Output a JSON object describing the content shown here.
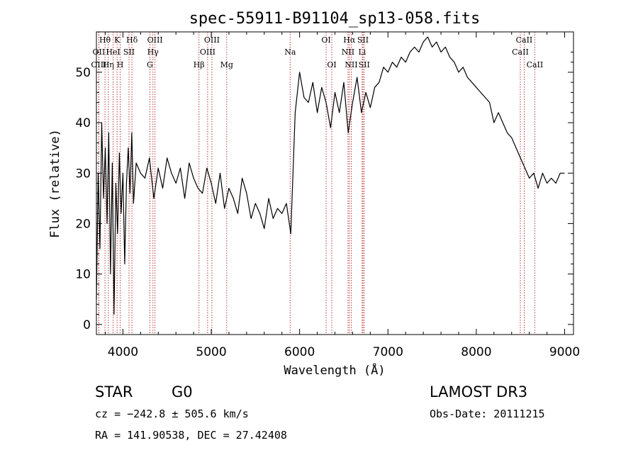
{
  "chart_data": {
    "type": "line",
    "title": "spec-55911-B91104_sp13-058.fits",
    "xlabel": "Wavelength (Å)",
    "ylabel": "Flux (relative)",
    "xlim": [
      3700,
      9100
    ],
    "ylim": [
      -2,
      58
    ],
    "xticks": [
      4000,
      5000,
      6000,
      7000,
      8000,
      9000
    ],
    "yticks": [
      0,
      10,
      20,
      30,
      40,
      50
    ],
    "grid": false,
    "series": [
      {
        "x": [
          3700,
          3720,
          3740,
          3760,
          3780,
          3800,
          3820,
          3840,
          3860,
          3880,
          3900,
          3920,
          3940,
          3960,
          3980,
          4000,
          4020,
          4040,
          4060,
          4080,
          4100,
          4120,
          4150,
          4200,
          4250,
          4300,
          4350,
          4400,
          4450,
          4500,
          4550,
          4600,
          4650,
          4700,
          4750,
          4800,
          4850,
          4900,
          4950,
          5000,
          5050,
          5100,
          5150,
          5200,
          5250,
          5300,
          5350,
          5400,
          5450,
          5500,
          5550,
          5600,
          5650,
          5700,
          5750,
          5800,
          5850,
          5900,
          5950,
          6000,
          6050,
          6100,
          6150,
          6200,
          6250,
          6300,
          6350,
          6400,
          6450,
          6500,
          6550,
          6600,
          6650,
          6700,
          6750,
          6800,
          6850,
          6900,
          6950,
          7000,
          7050,
          7100,
          7150,
          7200,
          7250,
          7300,
          7350,
          7400,
          7450,
          7500,
          7550,
          7600,
          7650,
          7700,
          7750,
          7800,
          7850,
          7900,
          7950,
          8000,
          8050,
          8100,
          8150,
          8200,
          8250,
          8300,
          8350,
          8400,
          8450,
          8500,
          8550,
          8600,
          8650,
          8700,
          8750,
          8800,
          8850,
          8900,
          8950,
          9000
        ],
        "y": [
          5,
          30,
          15,
          40,
          25,
          35,
          20,
          38,
          10,
          32,
          2,
          28,
          18,
          34,
          22,
          30,
          12,
          28,
          35,
          26,
          38,
          24,
          32,
          30,
          29,
          33,
          25,
          31,
          27,
          33,
          30,
          28,
          31,
          25,
          32,
          29,
          27,
          26,
          31,
          28,
          24,
          30,
          23,
          27,
          25,
          22,
          29,
          26,
          21,
          24,
          22,
          19,
          25,
          21,
          23,
          22,
          24,
          18,
          42,
          50,
          45,
          44,
          48,
          42,
          47,
          44,
          39,
          46,
          42,
          48,
          38,
          44,
          49,
          42,
          46,
          43,
          47,
          48,
          51,
          50,
          52,
          51,
          53,
          52,
          54,
          55,
          54,
          56,
          57,
          55,
          56,
          54,
          55,
          53,
          52,
          50,
          51,
          49,
          48,
          47,
          46,
          45,
          44,
          40,
          42,
          40,
          38,
          37,
          35,
          33,
          31,
          29,
          30,
          27,
          30,
          28,
          29,
          28,
          30,
          30
        ]
      }
    ],
    "lines": [
      {
        "label": "Hθ",
        "x": 3797,
        "row": 1
      },
      {
        "label": "OII",
        "x": 3727,
        "row": 2
      },
      {
        "label": "OIII",
        "x": 3727,
        "row": 3
      },
      {
        "label": "K",
        "x": 3934,
        "row": 1
      },
      {
        "label": "HeI",
        "x": 3889,
        "row": 2
      },
      {
        "label": "Hη",
        "x": 3835,
        "row": 3
      },
      {
        "label": "SII",
        "x": 4069,
        "row": 2
      },
      {
        "label": "H",
        "x": 3969,
        "row": 3
      },
      {
        "label": "Hδ",
        "x": 4102,
        "row": 1
      },
      {
        "label": "OIII",
        "x": 4363,
        "row": 1
      },
      {
        "label": "Hγ",
        "x": 4340,
        "row": 2
      },
      {
        "label": "G",
        "x": 4305,
        "row": 3
      },
      {
        "label": "OIII",
        "x": 5007,
        "row": 1
      },
      {
        "label": "OIII",
        "x": 4959,
        "row": 2
      },
      {
        "label": "Hβ",
        "x": 4861,
        "row": 3
      },
      {
        "label": "Mg",
        "x": 5175,
        "row": 3
      },
      {
        "label": "Na",
        "x": 5893,
        "row": 2
      },
      {
        "label": "OI",
        "x": 6300,
        "row": 1
      },
      {
        "label": "OI",
        "x": 6364,
        "row": 3
      },
      {
        "label": "Hα",
        "x": 6563,
        "row": 1
      },
      {
        "label": "SII",
        "x": 6717,
        "row": 1
      },
      {
        "label": "NII",
        "x": 6548,
        "row": 2
      },
      {
        "label": "Li",
        "x": 6708,
        "row": 2
      },
      {
        "label": "NII",
        "x": 6584,
        "row": 3
      },
      {
        "label": "SII",
        "x": 6731,
        "row": 3
      },
      {
        "label": "CaII",
        "x": 8542,
        "row": 1
      },
      {
        "label": "CaII",
        "x": 8498,
        "row": 2
      },
      {
        "label": "CaII",
        "x": 8662,
        "row": 3
      }
    ]
  },
  "info": {
    "class": "STAR",
    "subclass": "G0",
    "survey": "LAMOST DR3",
    "cz": "cz = −242.8 ± 505.6 km/s",
    "obs_date": "Obs-Date: 20111215",
    "radec": "RA = 141.90538, DEC =  27.42408"
  },
  "colors": {
    "spectrum": "#000000",
    "line_marker": "#b22222",
    "axis": "#000000"
  }
}
